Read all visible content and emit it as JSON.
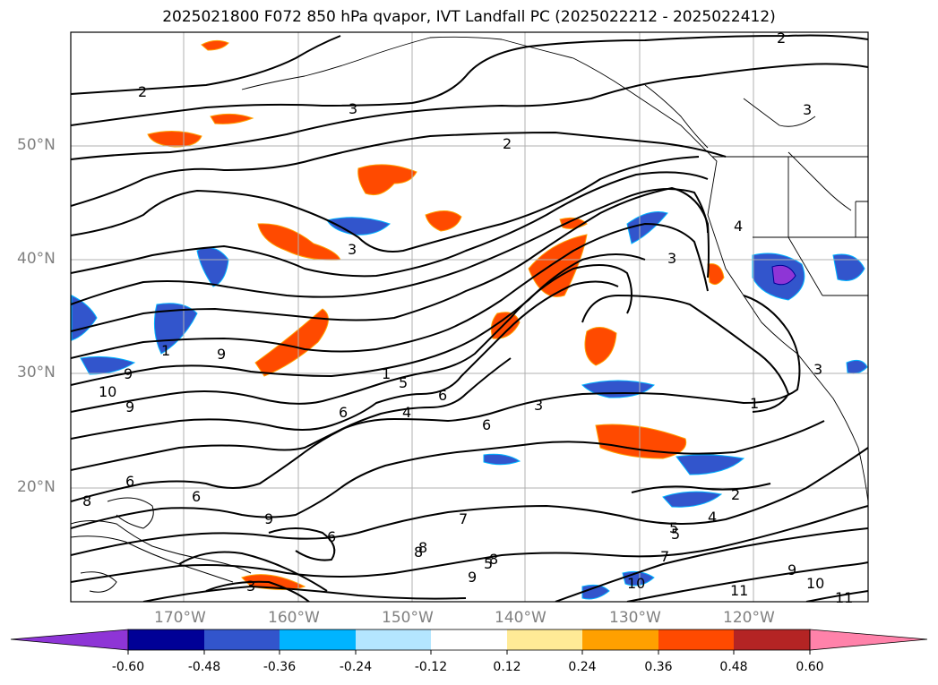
{
  "title": "2025021800 F072 850 hPa qvapor, IVT Landfall PC (2025022212 - 2025022412)",
  "lat_labels": [
    "50°N",
    "40°N",
    "30°N",
    "20°N"
  ],
  "lon_labels": [
    "170°W",
    "160°W",
    "150°W",
    "140°W",
    "130°W",
    "120°W"
  ],
  "contour_labels": [
    "2",
    "3",
    "2",
    "3",
    "2",
    "3",
    "3",
    "1",
    "4",
    "5",
    "6",
    "6",
    "6",
    "3",
    "9",
    "10",
    "9",
    "1",
    "6",
    "8",
    "9",
    "9",
    "6",
    "7",
    "8",
    "9",
    "5",
    "2",
    "4",
    "5",
    "7",
    "9",
    "10",
    "11",
    "11",
    "4",
    "3",
    "1",
    "8",
    "8",
    "5",
    "6",
    "3",
    "10"
  ],
  "colorbar": {
    "ticks": [
      "-0.60",
      "-0.48",
      "-0.36",
      "-0.24",
      "-0.12",
      "0.12",
      "0.24",
      "0.36",
      "0.48",
      "0.60"
    ],
    "colors": [
      "#8e35d6",
      "#000096",
      "#3255cc",
      "#00b4ff",
      "#b4e6ff",
      "#ffffff",
      "#ffea96",
      "#ffa000",
      "#ff4a00",
      "#b42424",
      "#ff82aa"
    ]
  }
}
